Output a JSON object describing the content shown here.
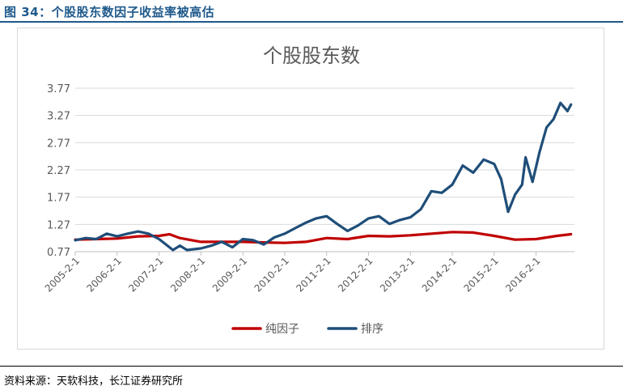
{
  "figure_title": "图 34：个股股东数因子收益率被高估",
  "source_note": "资料来源：天软科技，长江证券研究所",
  "chart_data": {
    "type": "line",
    "title": "个股股东数",
    "xlabel": "",
    "ylabel": "",
    "yticks": [
      0.77,
      1.27,
      1.77,
      2.27,
      2.77,
      3.27,
      3.77
    ],
    "ytick_labels": [
      "0.77",
      "1.27",
      "1.77",
      "2.27",
      "2.77",
      "3.27",
      "3.77"
    ],
    "ylim": [
      0.77,
      3.77
    ],
    "xlim": [
      "2005-2-1",
      "2017-1-1"
    ],
    "xticks": [
      "2005-2-1",
      "2006-2-1",
      "2007-2-1",
      "2008-2-1",
      "2009-2-1",
      "2010-2-1",
      "2011-2-1",
      "2012-2-1",
      "2013-2-1",
      "2014-2-1",
      "2015-2-1",
      "2016-2-1"
    ],
    "grid": true,
    "legend_position": "bottom-center",
    "series": [
      {
        "name": "纯因子",
        "color": "#c00000",
        "points": [
          [
            "2005-2-1",
            0.99
          ],
          [
            "2005-8-1",
            1.0
          ],
          [
            "2006-2-1",
            1.01
          ],
          [
            "2006-8-1",
            1.05
          ],
          [
            "2007-2-1",
            1.06
          ],
          [
            "2007-5-1",
            1.09
          ],
          [
            "2007-8-1",
            1.02
          ],
          [
            "2008-2-1",
            0.95
          ],
          [
            "2008-8-1",
            0.95
          ],
          [
            "2009-2-1",
            0.95
          ],
          [
            "2009-8-1",
            0.94
          ],
          [
            "2010-2-1",
            0.93
          ],
          [
            "2010-8-1",
            0.95
          ],
          [
            "2011-2-1",
            1.02
          ],
          [
            "2011-8-1",
            1.0
          ],
          [
            "2012-2-1",
            1.06
          ],
          [
            "2012-8-1",
            1.05
          ],
          [
            "2013-2-1",
            1.07
          ],
          [
            "2013-8-1",
            1.1
          ],
          [
            "2014-2-1",
            1.13
          ],
          [
            "2014-8-1",
            1.12
          ],
          [
            "2015-2-1",
            1.06
          ],
          [
            "2015-8-1",
            0.99
          ],
          [
            "2016-2-1",
            1.0
          ],
          [
            "2016-8-1",
            1.06
          ],
          [
            "2016-12-1",
            1.09
          ]
        ]
      },
      {
        "name": "排序",
        "color": "#1f4e79",
        "points": [
          [
            "2005-2-1",
            0.98
          ],
          [
            "2005-5-1",
            1.02
          ],
          [
            "2005-8-1",
            1.0
          ],
          [
            "2005-11-1",
            1.1
          ],
          [
            "2006-2-1",
            1.05
          ],
          [
            "2006-5-1",
            1.1
          ],
          [
            "2006-8-1",
            1.14
          ],
          [
            "2006-11-1",
            1.1
          ],
          [
            "2007-2-1",
            1.0
          ],
          [
            "2007-4-1",
            0.9
          ],
          [
            "2007-6-1",
            0.8
          ],
          [
            "2007-8-1",
            0.88
          ],
          [
            "2007-10-1",
            0.8
          ],
          [
            "2008-2-1",
            0.83
          ],
          [
            "2008-5-1",
            0.88
          ],
          [
            "2008-8-1",
            0.95
          ],
          [
            "2008-11-1",
            0.85
          ],
          [
            "2009-2-1",
            1.0
          ],
          [
            "2009-5-1",
            0.98
          ],
          [
            "2009-8-1",
            0.9
          ],
          [
            "2009-11-1",
            1.03
          ],
          [
            "2010-2-1",
            1.1
          ],
          [
            "2010-5-1",
            1.2
          ],
          [
            "2010-8-1",
            1.3
          ],
          [
            "2010-11-1",
            1.38
          ],
          [
            "2011-2-1",
            1.42
          ],
          [
            "2011-5-1",
            1.28
          ],
          [
            "2011-8-1",
            1.15
          ],
          [
            "2011-11-1",
            1.25
          ],
          [
            "2012-2-1",
            1.38
          ],
          [
            "2012-5-1",
            1.42
          ],
          [
            "2012-8-1",
            1.28
          ],
          [
            "2012-11-1",
            1.35
          ],
          [
            "2013-2-1",
            1.4
          ],
          [
            "2013-5-1",
            1.55
          ],
          [
            "2013-8-1",
            1.88
          ],
          [
            "2013-11-1",
            1.85
          ],
          [
            "2014-2-1",
            2.0
          ],
          [
            "2014-5-1",
            2.35
          ],
          [
            "2014-8-1",
            2.22
          ],
          [
            "2014-11-1",
            2.46
          ],
          [
            "2015-2-1",
            2.38
          ],
          [
            "2015-4-1",
            2.1
          ],
          [
            "2015-6-1",
            1.5
          ],
          [
            "2015-8-1",
            1.82
          ],
          [
            "2015-10-1",
            2.0
          ],
          [
            "2015-11-1",
            2.5
          ],
          [
            "2016-1-1",
            2.05
          ],
          [
            "2016-3-1",
            2.6
          ],
          [
            "2016-5-1",
            3.05
          ],
          [
            "2016-7-1",
            3.2
          ],
          [
            "2016-9-1",
            3.5
          ],
          [
            "2016-11-1",
            3.35
          ],
          [
            "2016-12-1",
            3.47
          ]
        ]
      }
    ]
  }
}
